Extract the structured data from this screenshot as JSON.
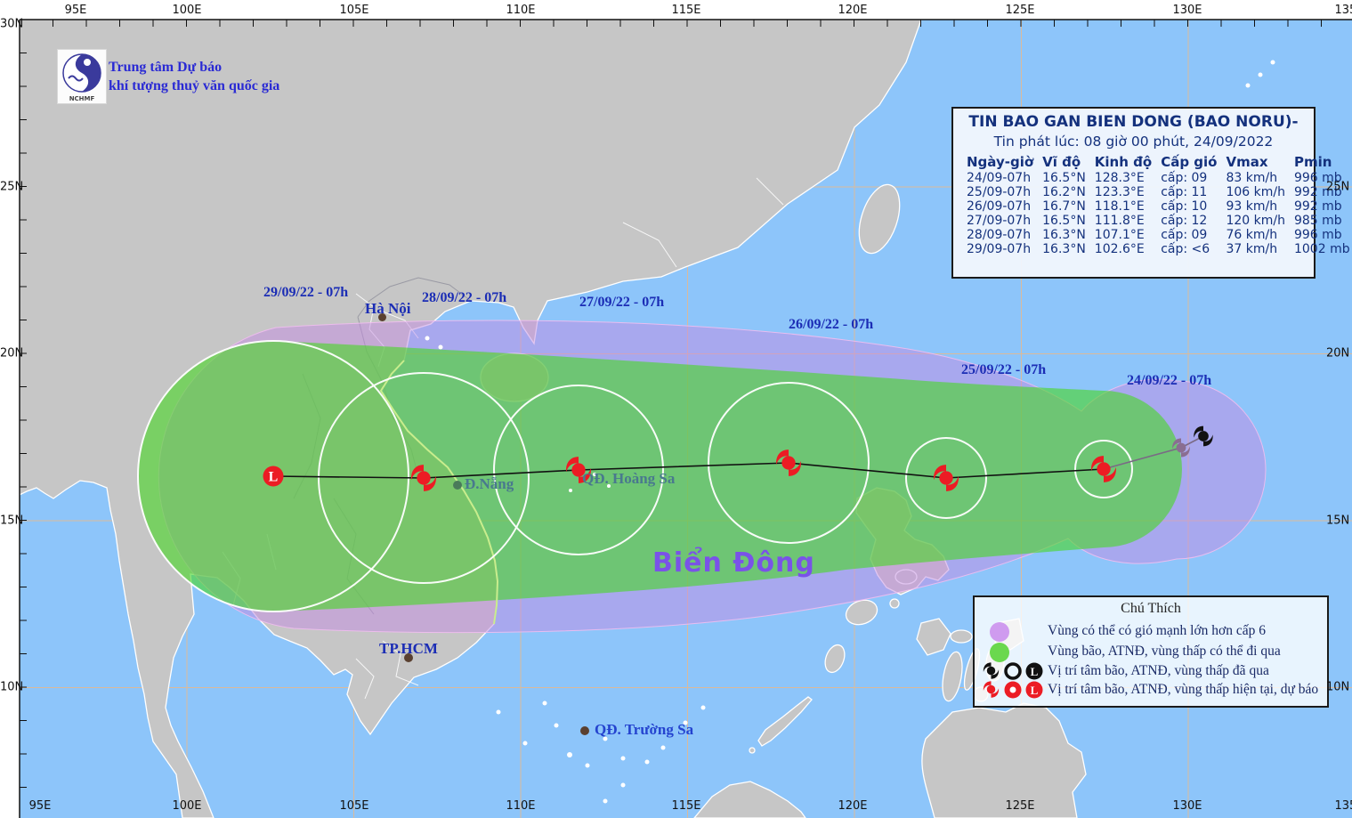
{
  "header": {
    "agency_line1": "Trung tâm Dự báo",
    "agency_line2": "khí tượng thuỷ văn quốc gia",
    "logo_text": "NCHMF"
  },
  "infobox": {
    "title": "TIN BAO GAN BIEN DONG (BAO NORU)-",
    "issued": "Tin phát lúc: 08 giờ 00 phút, 24/09/2022",
    "columns": [
      "Ngày-giờ",
      "Vĩ độ",
      "Kinh độ",
      "Cấp gió",
      "Vmax",
      "Pmin"
    ],
    "rows": [
      [
        "24/09-07h",
        "16.5°N",
        "128.3°E",
        "cấp: 09",
        "83 km/h",
        "996 mb"
      ],
      [
        "25/09-07h",
        "16.2°N",
        "123.3°E",
        "cấp: 11",
        "106 km/h",
        "992 mb"
      ],
      [
        "26/09-07h",
        "16.7°N",
        "118.1°E",
        "cấp: 10",
        "93 km/h",
        "992 mb"
      ],
      [
        "27/09-07h",
        "16.5°N",
        "111.8°E",
        "cấp: 12",
        "120 km/h",
        "985 mb"
      ],
      [
        "28/09-07h",
        "16.3°N",
        "107.1°E",
        "cấp: 09",
        "76 km/h",
        "996 mb"
      ],
      [
        "29/09-07h",
        "16.3°N",
        "102.6°E",
        "cấp: <6",
        "37 km/h",
        "1002 mb"
      ]
    ]
  },
  "legend": {
    "title": "Chú Thích",
    "items": [
      {
        "label": "Vùng có thể có gió mạnh lớn hơn cấp 6",
        "swatch": "purple-circle"
      },
      {
        "label": "Vùng bão, ATNĐ, vùng thấp có thể đi qua",
        "swatch": "green-circle"
      },
      {
        "label": "Vị trí tâm bão, ATNĐ, vùng thấp đã qua",
        "swatch": "black-symbols"
      },
      {
        "label": "Vị trí tâm bão, ATNĐ, vùng thấp hiện tại, dự báo",
        "swatch": "red-symbols"
      }
    ]
  },
  "map_labels": {
    "sea": "Biển Đông",
    "dates": [
      "29/09/22 - 07h",
      "28/09/22 - 07h",
      "27/09/22 - 07h",
      "26/09/22 - 07h",
      "25/09/22 - 07h",
      "24/09/22 - 07h"
    ],
    "cities": {
      "hanoi": "Hà Nội",
      "danang": "Đ.Nẵng",
      "hoangsa": "QĐ. Hoàng Sa",
      "hcmc": "TP.HCM",
      "truongsa": "QĐ. Trường Sa"
    }
  },
  "axes": {
    "lon": [
      "95E",
      "100E",
      "105E",
      "110E",
      "115E",
      "120E",
      "125E",
      "130E",
      "135E"
    ],
    "lat_left": [
      "30N",
      "25N",
      "20N",
      "15N",
      "10N"
    ],
    "lat_right": [
      "25N",
      "20N",
      "15N",
      "10N"
    ]
  },
  "colors": {
    "sea": "#8dc5fa",
    "land": "#c6c6c6",
    "wind_area_purple": "#c48ce1",
    "pass_area_green": "#4ad628",
    "storm_red": "#ec1c24",
    "past_black": "#111111",
    "past_gray": "#8a6e91",
    "label_blue": "#1b2db5",
    "sea_name_purple": "#7a52e8"
  }
}
